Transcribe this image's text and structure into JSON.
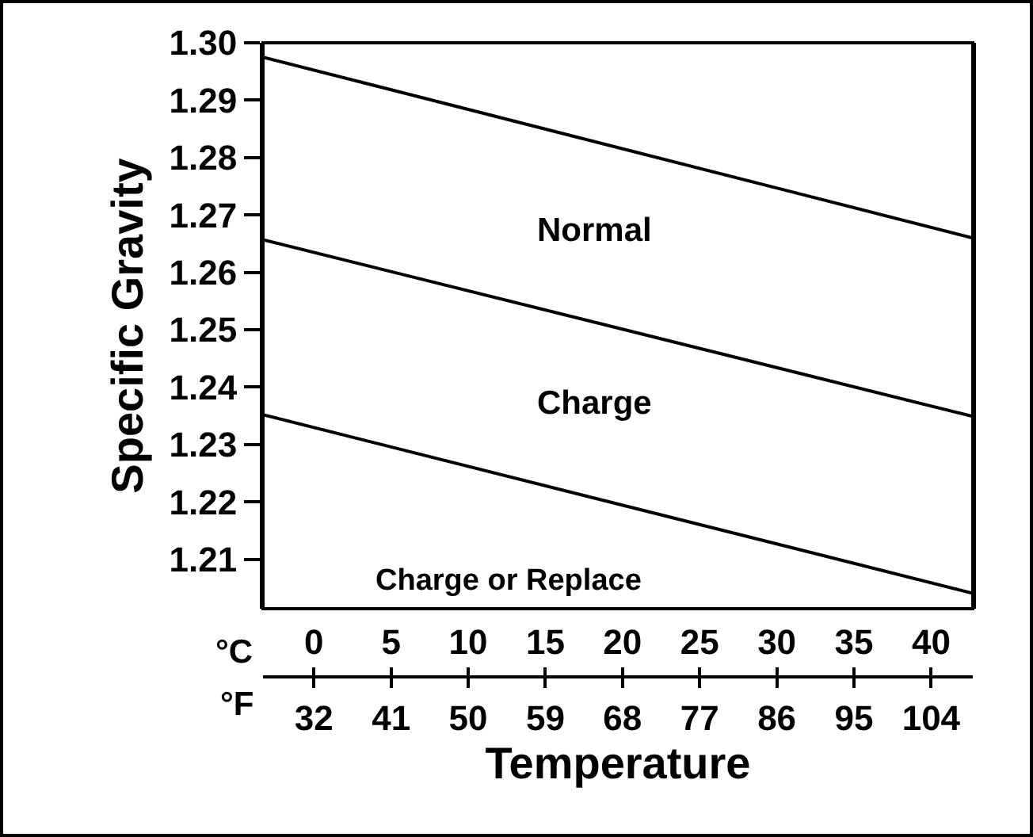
{
  "chart_data": {
    "type": "line",
    "xlabel": "Temperature",
    "ylabel": "Specific Gravity",
    "xlim": [
      -3.3,
      42.7
    ],
    "xticks": [
      0,
      5,
      10,
      15,
      20,
      25,
      30,
      35,
      40
    ],
    "x2lim": [
      26.06,
      108.86
    ],
    "x2ticks": [
      32,
      41,
      50,
      59,
      68,
      77,
      86,
      95,
      104
    ],
    "ylim": [
      1.2014,
      1.3
    ],
    "yticks": [
      {
        "value": 1.21,
        "label": "1.21"
      },
      1.22,
      1.23,
      1.24,
      1.25,
      1.26,
      1.27,
      1.28,
      1.29,
      {
        "value": 1.3,
        "label": "1.30"
      }
    ],
    "x": [
      -3.3,
      42.7
    ],
    "series": [
      {
        "color": "#000000",
        "values": [
          1.2975,
          1.266
        ]
      },
      {
        "color": "#000000",
        "values": [
          1.2657,
          1.2349
        ]
      },
      {
        "color": "#000000",
        "values": [
          1.2352,
          1.2041
        ]
      }
    ],
    "annotations": [
      "Normal",
      "Charge",
      "Charge or Replace",
      "°C",
      "°F"
    ],
    "marker": "none",
    "line_style": "solid",
    "grid": false
  }
}
